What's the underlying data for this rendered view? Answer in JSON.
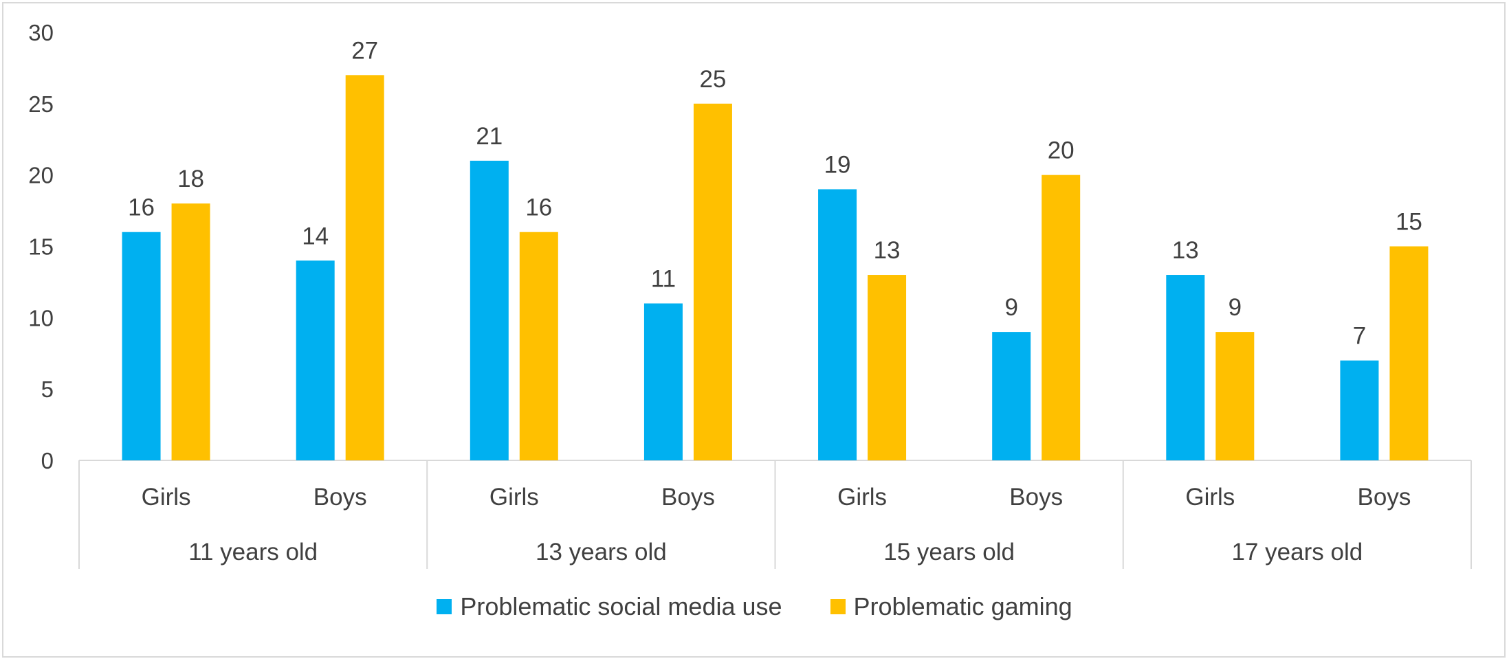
{
  "chart_data": {
    "type": "bar",
    "title": "",
    "xlabel": "",
    "ylabel": "",
    "ylim": [
      0,
      30
    ],
    "yticks": [
      0,
      5,
      10,
      15,
      20,
      25,
      30
    ],
    "groups": [
      {
        "label": "11 years old",
        "categories": [
          "Girls",
          "Boys"
        ]
      },
      {
        "label": "13 years old",
        "categories": [
          "Girls",
          "Boys"
        ]
      },
      {
        "label": "15 years old",
        "categories": [
          "Girls",
          "Boys"
        ]
      },
      {
        "label": "17 years old",
        "categories": [
          "Girls",
          "Boys"
        ]
      }
    ],
    "series": [
      {
        "name": "Problematic social media use",
        "color": "#00B0F0",
        "values": [
          16,
          14,
          21,
          11,
          19,
          9,
          13,
          7
        ]
      },
      {
        "name": "Problematic gaming",
        "color": "#FFC000",
        "values": [
          18,
          27,
          16,
          25,
          13,
          20,
          9,
          15
        ]
      }
    ],
    "data_labels": true,
    "grid": false,
    "legend_position": "bottom"
  }
}
